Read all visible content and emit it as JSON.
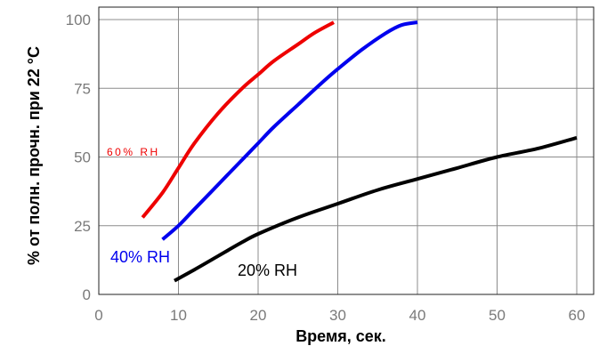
{
  "chart_data": {
    "type": "line",
    "title": "",
    "xlabel": "Время, сек.",
    "ylabel": "% от полн. прочн. при 22 °C",
    "xlim": [
      0,
      62
    ],
    "ylim": [
      0,
      104
    ],
    "xticks": [
      "0",
      "10",
      "20",
      "30",
      "40",
      "50",
      "60"
    ],
    "yticks": [
      "0",
      "25",
      "50",
      "75",
      "100"
    ],
    "grid": true,
    "series": [
      {
        "name": "60% RH",
        "color": "#ee0000",
        "x": [
          5.5,
          8,
          10,
          12,
          15,
          18,
          20,
          22,
          25,
          27,
          29.5
        ],
        "y": [
          28,
          37,
          46,
          55,
          66,
          75,
          80,
          85,
          91,
          95,
          99
        ]
      },
      {
        "name": "40% RH",
        "color": "#0000ee",
        "x": [
          8,
          10,
          12,
          15,
          18,
          20,
          22,
          25,
          28,
          30,
          33,
          36,
          38,
          40
        ],
        "y": [
          20,
          25,
          31,
          40,
          49,
          55,
          61,
          69,
          77,
          82,
          89,
          95,
          98,
          99
        ]
      },
      {
        "name": "20% RH",
        "color": "#000000",
        "x": [
          9.5,
          12,
          15,
          18,
          20,
          25,
          30,
          35,
          40,
          45,
          50,
          55,
          60
        ],
        "y": [
          5,
          9,
          14,
          19,
          22,
          28,
          33,
          38,
          42,
          46,
          50,
          53,
          57
        ]
      }
    ]
  }
}
